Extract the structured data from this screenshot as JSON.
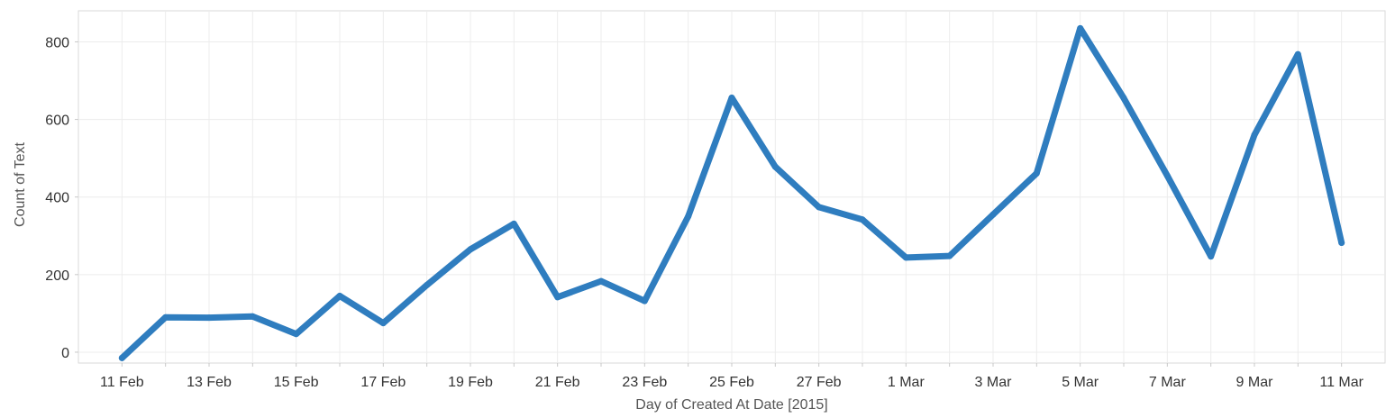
{
  "chart_data": {
    "type": "line",
    "title": "",
    "xlabel": "Day of Created At Date [2015]",
    "ylabel": "Count of Text",
    "x": [
      "2015-02-11",
      "2015-02-12",
      "2015-02-13",
      "2015-02-14",
      "2015-02-15",
      "2015-02-16",
      "2015-02-17",
      "2015-02-18",
      "2015-02-19",
      "2015-02-20",
      "2015-02-21",
      "2015-02-22",
      "2015-02-23",
      "2015-02-24",
      "2015-02-25",
      "2015-02-26",
      "2015-02-27",
      "2015-02-28",
      "2015-03-01",
      "2015-03-02",
      "2015-03-03",
      "2015-03-04",
      "2015-03-05",
      "2015-03-06",
      "2015-03-07",
      "2015-03-08",
      "2015-03-09",
      "2015-03-10",
      "2015-03-11"
    ],
    "series": [
      {
        "name": "",
        "values": [
          -15,
          90,
          89,
          92,
          47,
          145,
          75,
          173,
          265,
          331,
          142,
          183,
          132,
          350,
          656,
          478,
          374,
          342,
          244,
          248,
          355,
          461,
          835,
          655,
          455,
          247,
          560,
          768,
          282
        ]
      }
    ],
    "x_tick_labels": [
      {
        "date": "2015-02-11",
        "label": "11 Feb"
      },
      {
        "date": "2015-02-13",
        "label": "13 Feb"
      },
      {
        "date": "2015-02-15",
        "label": "15 Feb"
      },
      {
        "date": "2015-02-17",
        "label": "17 Feb"
      },
      {
        "date": "2015-02-19",
        "label": "19 Feb"
      },
      {
        "date": "2015-02-21",
        "label": "21 Feb"
      },
      {
        "date": "2015-02-23",
        "label": "23 Feb"
      },
      {
        "date": "2015-02-25",
        "label": "25 Feb"
      },
      {
        "date": "2015-02-27",
        "label": "27 Feb"
      },
      {
        "date": "2015-03-01",
        "label": "1 Mar"
      },
      {
        "date": "2015-03-03",
        "label": "3 Mar"
      },
      {
        "date": "2015-03-05",
        "label": "5 Mar"
      },
      {
        "date": "2015-03-07",
        "label": "7 Mar"
      },
      {
        "date": "2015-03-09",
        "label": "9 Mar"
      },
      {
        "date": "2015-03-11",
        "label": "11 Mar"
      }
    ],
    "xlim": [
      "2015-02-10",
      "2015-03-12"
    ],
    "y_ticks": [
      0,
      200,
      400,
      600,
      800
    ],
    "ylim": [
      -28,
      880
    ],
    "grid": true,
    "legend": "none",
    "line_color": "#2f7dbf"
  }
}
